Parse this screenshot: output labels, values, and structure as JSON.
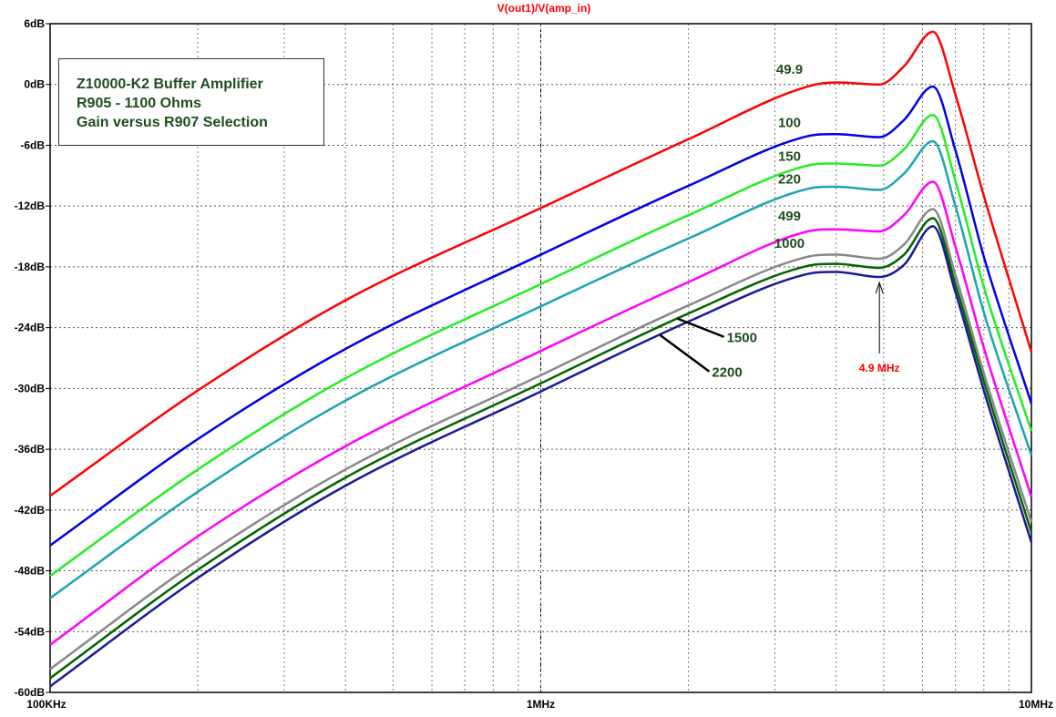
{
  "chart_data": {
    "type": "line",
    "title": "V(out1)/V(amp_in)",
    "x_scale": "log",
    "xlim": [
      100000,
      10000000
    ],
    "ylim": [
      -60,
      6
    ],
    "x_ticks": [
      {
        "value": 100000,
        "label": "100KHz"
      },
      {
        "value": 1000000,
        "label": "1MHz"
      },
      {
        "value": 10000000,
        "label": "10MHz"
      }
    ],
    "y_ticks": [
      {
        "value": 6,
        "label": "6dB"
      },
      {
        "value": 0,
        "label": "0dB"
      },
      {
        "value": -6,
        "label": "-6dB"
      },
      {
        "value": -12,
        "label": "-12dB"
      },
      {
        "value": -18,
        "label": "-18dB"
      },
      {
        "value": -24,
        "label": "-24dB"
      },
      {
        "value": -30,
        "label": "-30dB"
      },
      {
        "value": -36,
        "label": "-36dB"
      },
      {
        "value": -42,
        "label": "-42dB"
      },
      {
        "value": -48,
        "label": "-48dB"
      },
      {
        "value": -54,
        "label": "-54dB"
      },
      {
        "value": -60,
        "label": "-60dB"
      }
    ],
    "grid": true,
    "x": [
      100000,
      200000,
      400000,
      1000000,
      2000000,
      3500000,
      4000000,
      4900000,
      5500000,
      6300000,
      7000000,
      8000000,
      10000000
    ],
    "series": [
      {
        "name": "49.9",
        "color": "#ff0000",
        "values": [
          -40.6,
          -30.2,
          -21.3,
          -12.2,
          -5.4,
          -0.2,
          0.2,
          0.0,
          1.8,
          5.2,
          -1.0,
          -11.0,
          -26.4
        ]
      },
      {
        "name": "100",
        "color": "#0000ee",
        "values": [
          -45.5,
          -35.0,
          -26.1,
          -16.8,
          -10.0,
          -5.1,
          -4.9,
          -5.2,
          -3.5,
          -0.2,
          -6.5,
          -17.0,
          -31.5
        ]
      },
      {
        "name": "150",
        "color": "#22ee22",
        "values": [
          -48.5,
          -38.0,
          -29.0,
          -19.7,
          -12.9,
          -8.0,
          -7.8,
          -8.0,
          -6.4,
          -3.0,
          -9.5,
          -20.0,
          -34.2
        ]
      },
      {
        "name": "220",
        "color": "#1aa3b3",
        "values": [
          -50.7,
          -40.2,
          -31.2,
          -21.9,
          -15.2,
          -10.3,
          -10.1,
          -10.4,
          -8.8,
          -5.6,
          -12.0,
          -22.5,
          -36.6
        ]
      },
      {
        "name": "499",
        "color": "#ff00ff",
        "values": [
          -55.3,
          -44.6,
          -35.7,
          -26.3,
          -19.5,
          -14.5,
          -14.3,
          -14.5,
          -12.9,
          -9.6,
          -16.0,
          -26.0,
          -40.7
        ]
      },
      {
        "name": "1000",
        "color": "#888888",
        "values": [
          -57.7,
          -47.0,
          -38.0,
          -28.7,
          -21.8,
          -17.0,
          -16.8,
          -17.2,
          -15.8,
          -12.3,
          -18.8,
          -28.5,
          -43.2
        ]
      },
      {
        "name": "1500",
        "color": "#006600",
        "values": [
          -58.6,
          -47.9,
          -38.8,
          -29.5,
          -22.6,
          -17.9,
          -17.7,
          -18.1,
          -16.8,
          -13.2,
          -19.7,
          -29.3,
          -44.2
        ]
      },
      {
        "name": "2200",
        "color": "#1a1a99",
        "values": [
          -59.4,
          -48.7,
          -39.6,
          -30.3,
          -23.4,
          -18.7,
          -18.5,
          -19.0,
          -17.8,
          -14.0,
          -20.5,
          -30.2,
          -45.2
        ]
      }
    ],
    "series_label_layout": [
      {
        "series": 0,
        "x_at": 3500000,
        "dy": -14
      },
      {
        "series": 1,
        "x_at": 3500000,
        "dy": -10
      },
      {
        "series": 2,
        "x_at": 3500000,
        "dy": -5
      },
      {
        "series": 3,
        "x_at": 3500000,
        "dy": -6
      },
      {
        "series": 4,
        "x_at": 3500000,
        "dy": -12
      },
      {
        "series": 5,
        "x_at": 3500000,
        "dy": -10
      }
    ],
    "annotation": {
      "text": "4.9 MHz",
      "x": 4900000,
      "y": -19.0,
      "color": "#ff0000"
    }
  },
  "infobox": {
    "line1": "Z10000-K2 Buffer Amplifier",
    "line2": "R905 - 1100 Ohms",
    "line3": "Gain versus R907 Selection"
  }
}
